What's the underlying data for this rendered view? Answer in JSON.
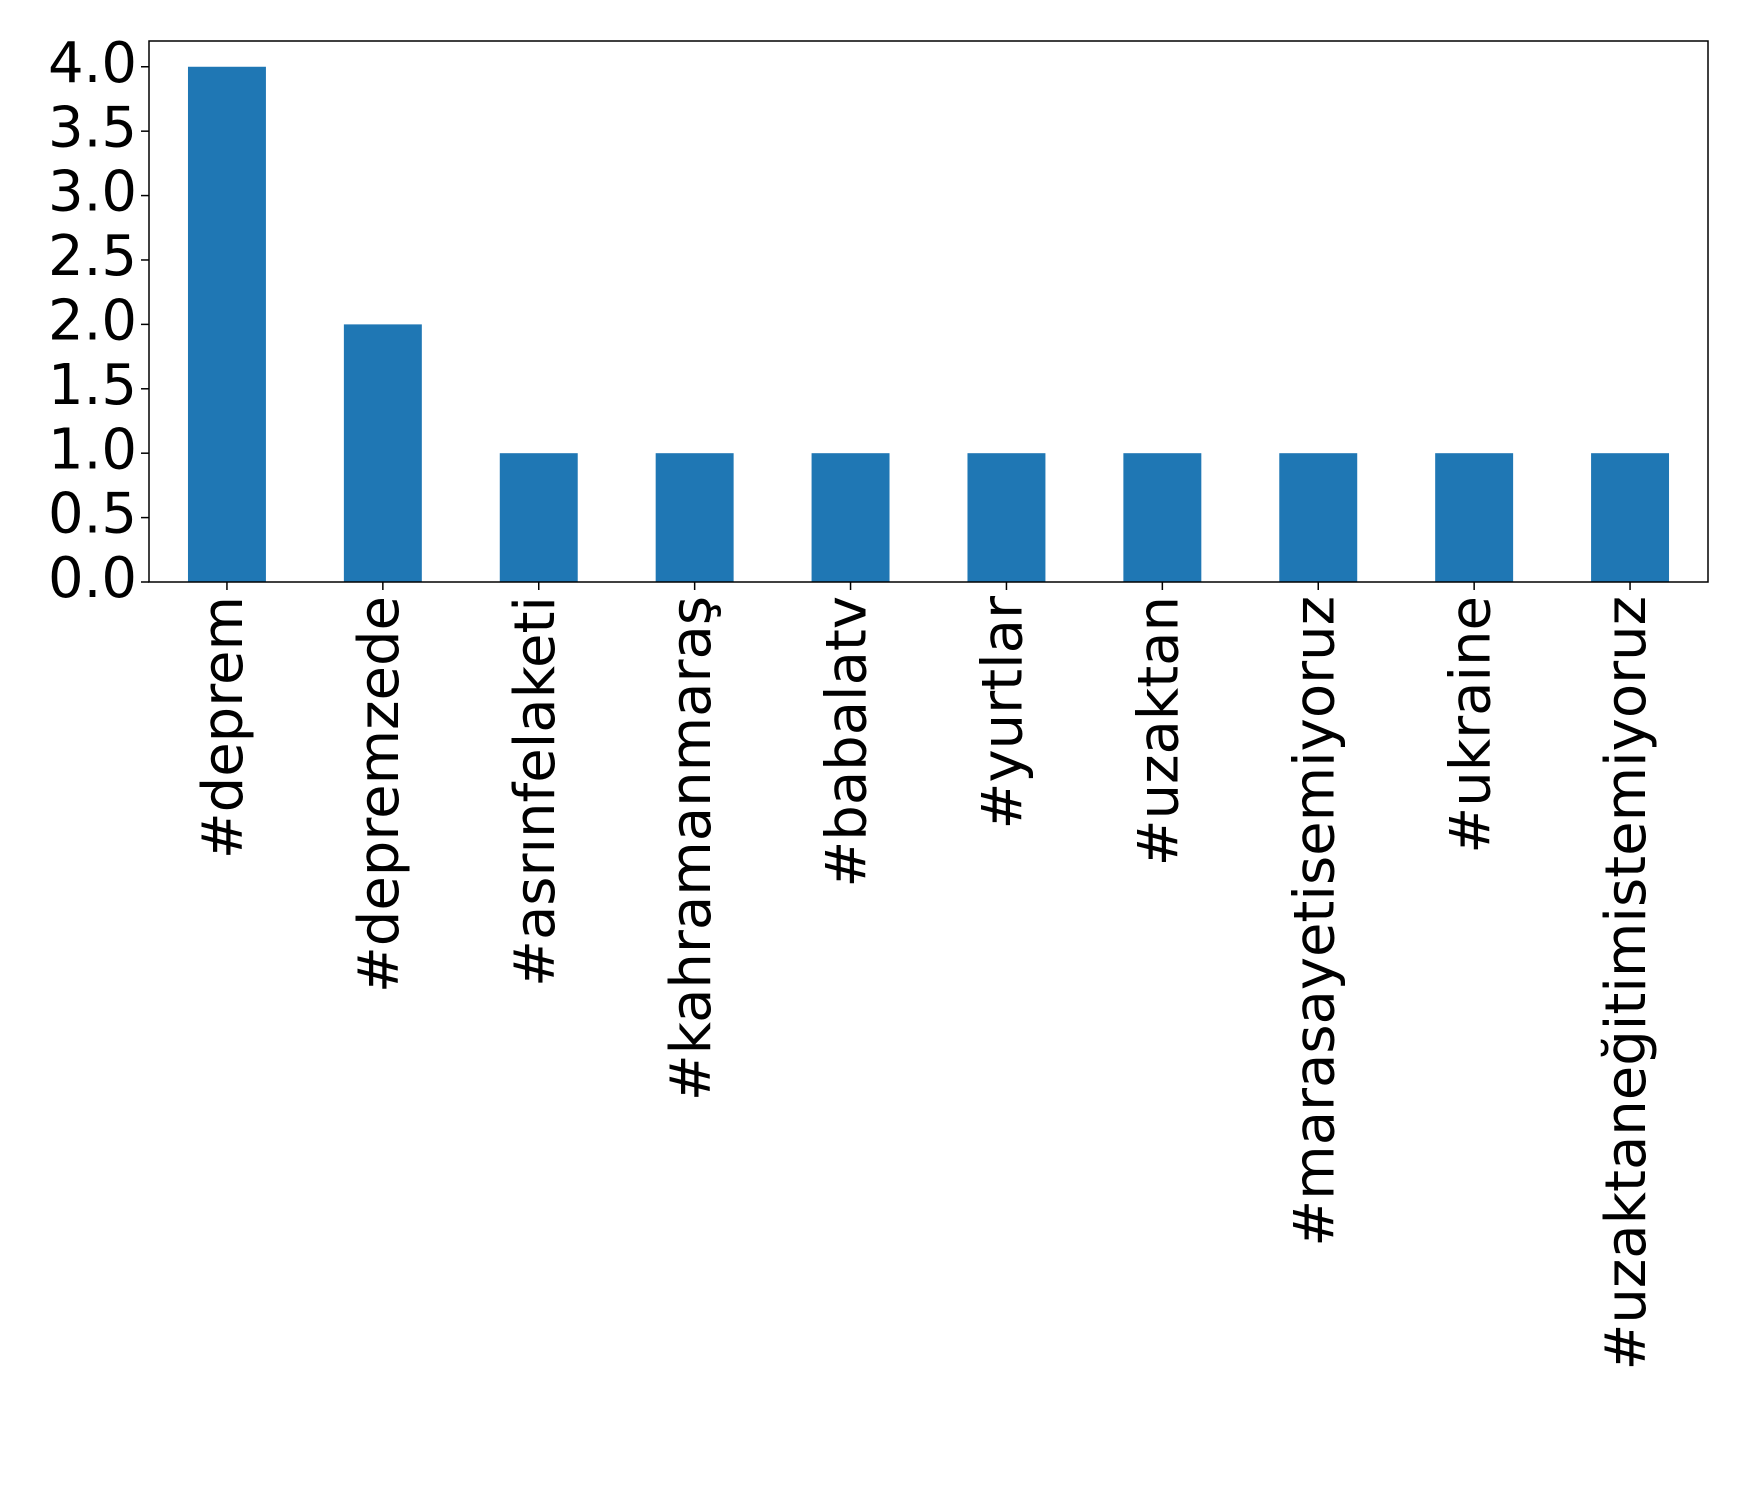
{
  "chart_data": {
    "type": "bar",
    "categories": [
      "#deprem",
      "#depremzede",
      "#asrınfelaketi",
      "#kahramanmaraş",
      "#babalatv",
      "#yurtlar",
      "#uzaktan",
      "#marasayetisemiyoruz",
      "#ukraine",
      "#uzaktaneğitimistemiyoruz"
    ],
    "values": [
      4,
      2,
      1,
      1,
      1,
      1,
      1,
      1,
      1,
      1
    ],
    "color": "#1f77b4",
    "ylim": [
      0,
      4.2
    ],
    "yticks": [
      {
        "value": 0,
        "label": "0.0"
      },
      {
        "value": 0.5,
        "label": "0.5"
      },
      {
        "value": 1,
        "label": "1.0"
      },
      {
        "value": 1.5,
        "label": "1.5"
      },
      {
        "value": 2,
        "label": "2.0"
      },
      {
        "value": 2.5,
        "label": "2.5"
      },
      {
        "value": 3,
        "label": "3.0"
      },
      {
        "value": 3.5,
        "label": "3.5"
      },
      {
        "value": 4,
        "label": "4.0"
      }
    ],
    "grid": false
  }
}
